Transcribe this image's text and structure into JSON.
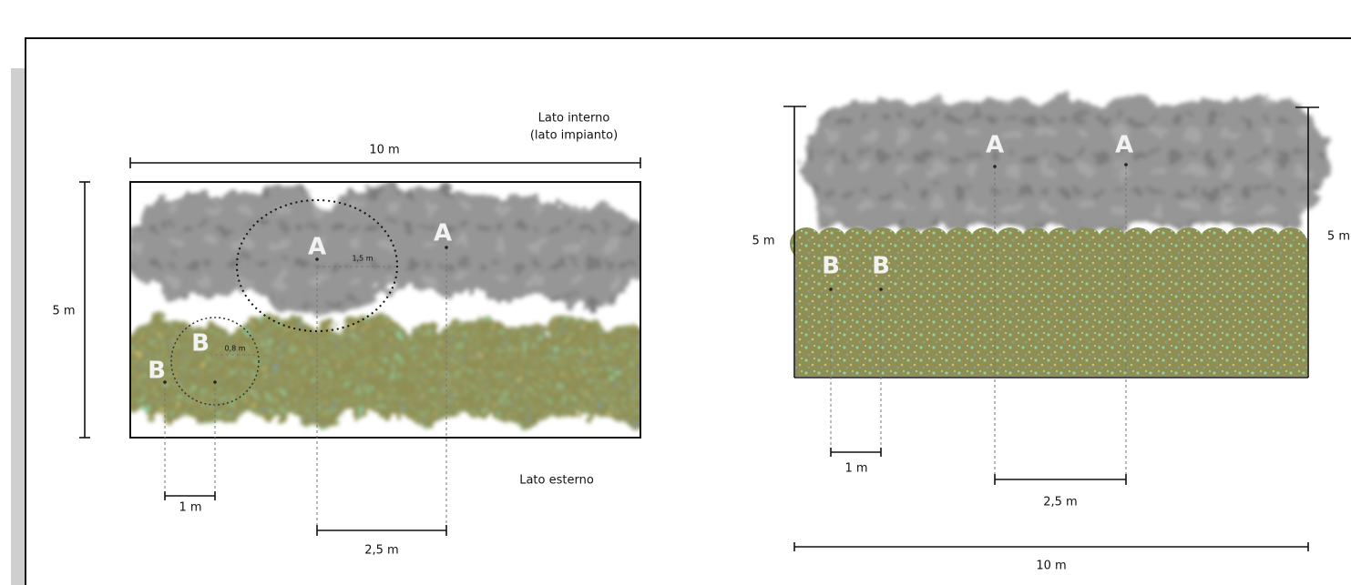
{
  "plan_view": {
    "inner_side": [
      "Lato interno",
      "(lato impianto)"
    ],
    "length": "10 m",
    "depth": "5 m",
    "trees": [
      "A",
      "A"
    ],
    "tree_radius": "1,5 m",
    "shrubs": [
      "B",
      "B"
    ],
    "shrub_radius": "0,8 m",
    "shrub_spacing": "1 m",
    "tree_spacing": "2,5 m",
    "outer_side": "Lato esterno"
  },
  "section_view": {
    "trees": [
      "A",
      "A"
    ],
    "shrubs": [
      "B",
      "B"
    ],
    "height_left": "5 m",
    "height_right": "5 m",
    "shrub_spacing": "1 m",
    "tree_spacing": "2,5 m",
    "length": "10 m"
  }
}
